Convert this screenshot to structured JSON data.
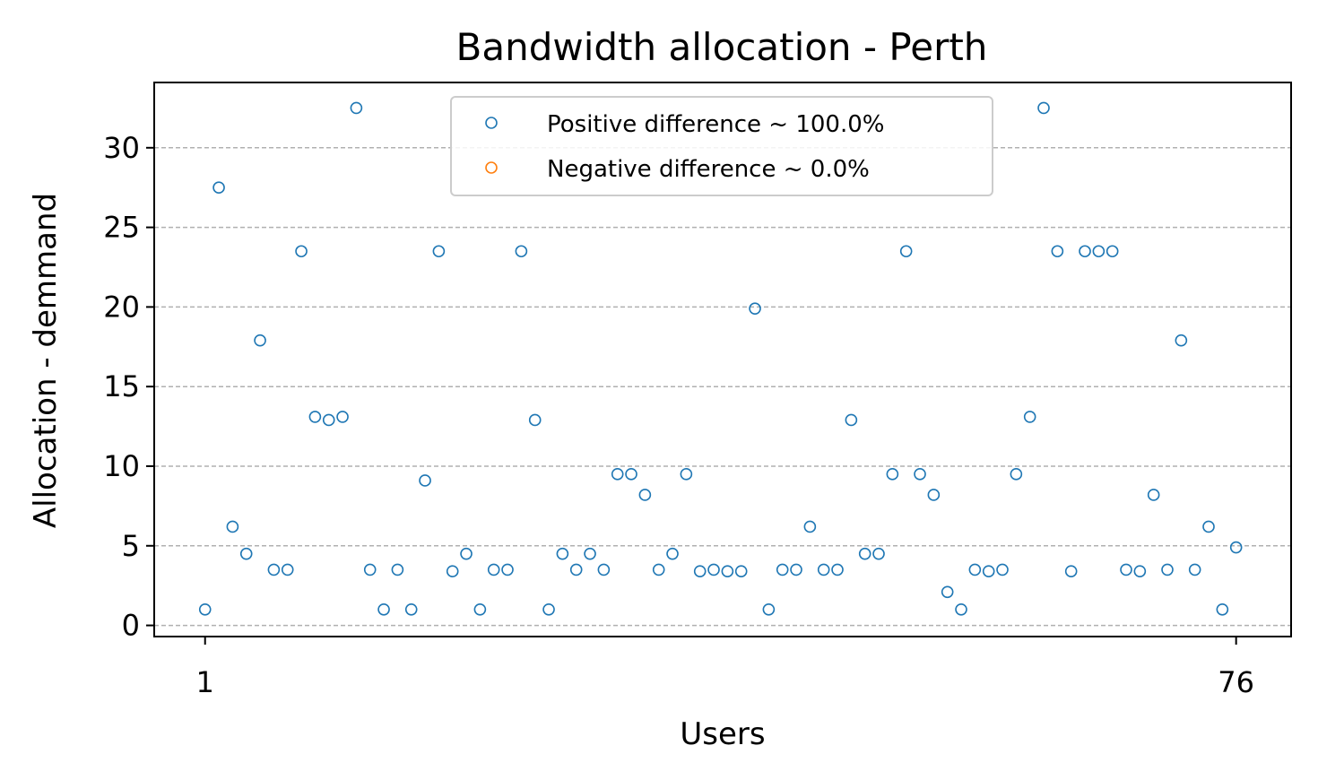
{
  "chart_data": {
    "type": "scatter",
    "title": "Bandwidth allocation - Perth",
    "xlabel": "Users",
    "ylabel": "Allocation - demmand",
    "xlim": [
      -2.7,
      80.0
    ],
    "ylim": [
      -0.7,
      34.1
    ],
    "x_ticks": [
      {
        "value": 1,
        "label": "1"
      },
      {
        "value": 76,
        "label": "76"
      }
    ],
    "y_ticks": [
      {
        "value": 0,
        "label": "0"
      },
      {
        "value": 5,
        "label": "5"
      },
      {
        "value": 10,
        "label": "10"
      },
      {
        "value": 15,
        "label": "15"
      },
      {
        "value": 20,
        "label": "20"
      },
      {
        "value": 25,
        "label": "25"
      },
      {
        "value": 30,
        "label": "30"
      }
    ],
    "grid": "y-dashed",
    "legend_position": "top-center",
    "series": [
      {
        "name": "Positive difference ~ 100.0%",
        "color": "#1f77b4",
        "marker": "hollow-circle",
        "x": [
          1,
          2,
          3,
          4,
          5,
          6,
          7,
          8,
          9,
          10,
          11,
          12,
          13,
          14,
          15,
          16,
          17,
          18,
          19,
          20,
          21,
          22,
          23,
          24,
          25,
          26,
          27,
          28,
          29,
          30,
          31,
          32,
          33,
          34,
          35,
          36,
          37,
          38,
          39,
          40,
          41,
          42,
          43,
          44,
          45,
          46,
          47,
          48,
          49,
          50,
          51,
          52,
          53,
          54,
          55,
          56,
          57,
          58,
          59,
          60,
          61,
          62,
          63,
          64,
          65,
          66,
          67,
          68,
          69,
          70,
          71,
          72,
          73,
          74,
          75,
          76
        ],
        "y": [
          1.0,
          27.5,
          6.2,
          4.5,
          17.9,
          3.5,
          3.5,
          23.5,
          13.1,
          12.9,
          13.1,
          32.5,
          3.5,
          1.0,
          3.5,
          1.0,
          9.1,
          23.5,
          3.4,
          4.5,
          1.0,
          3.5,
          3.5,
          23.5,
          12.9,
          1.0,
          4.5,
          3.5,
          4.5,
          3.5,
          9.5,
          9.5,
          8.2,
          3.5,
          4.5,
          9.5,
          3.4,
          3.5,
          3.4,
          3.4,
          19.9,
          1.0,
          3.5,
          3.5,
          6.2,
          3.5,
          3.5,
          12.9,
          4.5,
          4.5,
          9.5,
          23.5,
          9.5,
          8.2,
          2.1,
          1.0,
          3.5,
          3.4,
          3.5,
          9.5,
          13.1,
          32.5,
          23.5,
          3.4,
          23.5,
          23.5,
          23.5,
          3.5,
          3.4,
          8.2,
          3.5,
          17.9,
          3.5,
          6.2,
          1.0,
          4.9
        ]
      },
      {
        "name": "Negative difference ~ 0.0%",
        "color": "#ff7f0e",
        "marker": "hollow-circle",
        "x": [],
        "y": []
      }
    ]
  }
}
